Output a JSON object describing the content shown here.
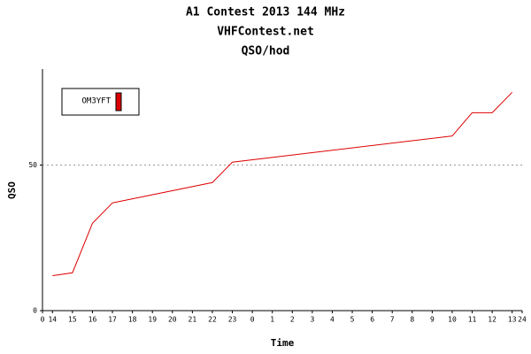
{
  "chart_data": {
    "type": "line",
    "title": "A1 Contest 2013 144 MHz",
    "subtitle": "VHFContest.net",
    "subtitle2": "QSO/hod",
    "x_label": "Time",
    "y_label": "QSO",
    "series": [
      {
        "name": "OM3YFT",
        "color": "#dd0000",
        "x": [
          0.5,
          1.5,
          2.5,
          3.5,
          8.5,
          9.5,
          20.5,
          21.5,
          22.5,
          23.5
        ],
        "values": [
          12,
          13,
          30,
          37,
          44,
          51,
          60,
          68,
          68,
          75
        ]
      }
    ],
    "xlim": [
      0,
      24
    ],
    "xticks": [
      0,
      {
        "value": 0.5,
        "label": "14"
      },
      {
        "value": 1.5,
        "label": "15"
      },
      {
        "value": 2.5,
        "label": "16"
      },
      {
        "value": 3.5,
        "label": "17"
      },
      {
        "value": 4.5,
        "label": "18"
      },
      {
        "value": 5.5,
        "label": "19"
      },
      {
        "value": 6.5,
        "label": "20"
      },
      {
        "value": 7.5,
        "label": "21"
      },
      {
        "value": 8.5,
        "label": "22"
      },
      {
        "value": 9.5,
        "label": "23"
      },
      {
        "value": 10.5,
        "label": "0"
      },
      {
        "value": 11.5,
        "label": "1"
      },
      {
        "value": 12.5,
        "label": "2"
      },
      {
        "value": 13.5,
        "label": "3"
      },
      {
        "value": 14.5,
        "label": "4"
      },
      {
        "value": 15.5,
        "label": "5"
      },
      {
        "value": 16.5,
        "label": "6"
      },
      {
        "value": 17.5,
        "label": "7"
      },
      {
        "value": 18.5,
        "label": "8"
      },
      {
        "value": 19.5,
        "label": "9"
      },
      {
        "value": 20.5,
        "label": "10"
      },
      {
        "value": 21.5,
        "label": "11"
      },
      {
        "value": 22.5,
        "label": "12"
      },
      {
        "value": 23.5,
        "label": "13"
      },
      24
    ],
    "ylim": [
      0,
      83
    ],
    "yticks": [
      0,
      50
    ],
    "grid": true,
    "legend": "top-left"
  }
}
